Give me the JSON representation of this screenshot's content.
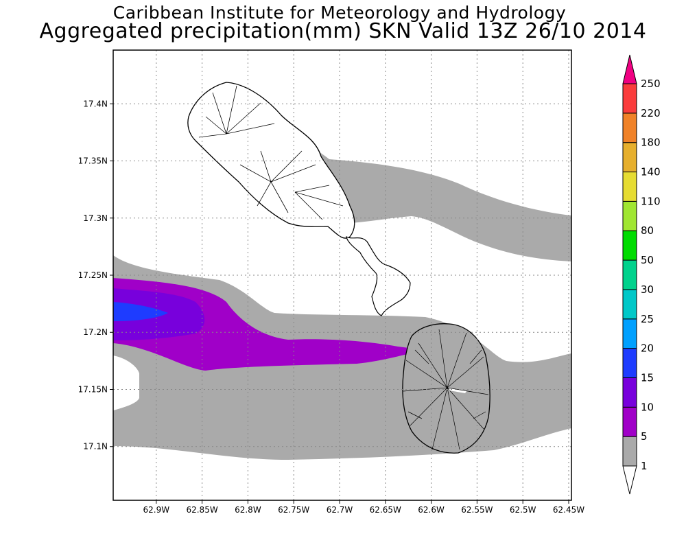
{
  "titles": {
    "line1": "Caribbean Institute for Meteorology and Hydrology",
    "line2": "Aggregated precipitation(mm) SKN Valid 13Z 26/10 2014"
  },
  "chart_data": {
    "type": "heatmap",
    "x_ticks": [
      "62.9W",
      "62.85W",
      "62.8W",
      "62.75W",
      "62.7W",
      "62.65W",
      "62.6W",
      "62.55W",
      "62.5W",
      "62.45W"
    ],
    "x_values": [
      -62.9,
      -62.85,
      -62.8,
      -62.75,
      -62.7,
      -62.65,
      -62.6,
      -62.55,
      -62.5,
      -62.45
    ],
    "y_ticks": [
      "17.4N",
      "17.35N",
      "17.3N",
      "17.25N",
      "17.2N",
      "17.15N",
      "17.1N"
    ],
    "y_values": [
      17.4,
      17.35,
      17.3,
      17.25,
      17.2,
      17.15,
      17.1
    ],
    "xlim": [
      -62.947,
      -62.447
    ],
    "ylim": [
      17.053,
      17.447
    ],
    "grid": true,
    "colorbar": {
      "labels": [
        "1",
        "5",
        "10",
        "15",
        "20",
        "25",
        "30",
        "50",
        "80",
        "110",
        "140",
        "180",
        "220",
        "250"
      ],
      "colors": [
        "#ffffff",
        "#aaaaaa",
        "#a000c8",
        "#7800dc",
        "#1e3cff",
        "#00a0ff",
        "#00c8c8",
        "#00d28c",
        "#00dc00",
        "#a0e632",
        "#e6dc32",
        "#e6af2d",
        "#f08228",
        "#fa3c3c",
        "#f00082"
      ]
    },
    "islands": [
      "St Kitts",
      "Nevis"
    ]
  }
}
